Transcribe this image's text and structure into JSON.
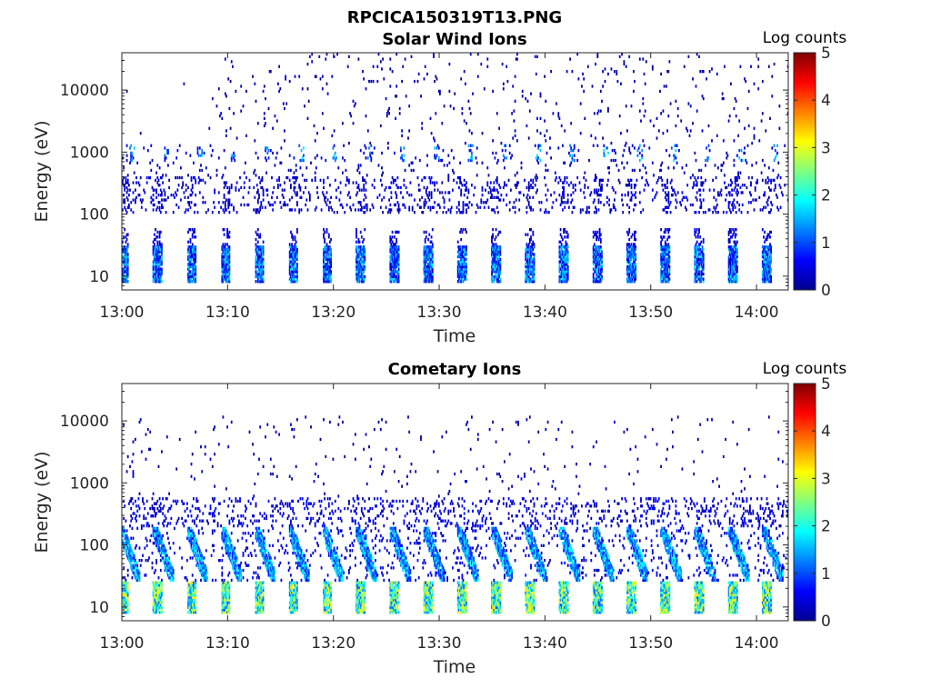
{
  "figure": {
    "title": "RPCICA150319T13.PNG"
  },
  "chart_data": [
    {
      "type": "heatmap",
      "title": "Solar Wind Ions",
      "xlabel": "Time",
      "ylabel": "Energy (eV)",
      "x_ticks": [
        "13:00",
        "13:10",
        "13:20",
        "13:30",
        "13:40",
        "13:50",
        "14:00"
      ],
      "x_range_minutes": [
        0,
        63
      ],
      "y_scale": "log",
      "y_ticks": [
        "10",
        "100",
        "1000",
        "10000"
      ],
      "y_range_eV": [
        6,
        40000
      ],
      "colorbar": {
        "label": "Log counts",
        "ticks": [
          "0",
          "1",
          "2",
          "3",
          "4",
          "5"
        ],
        "range": [
          0,
          5
        ],
        "colormap": "jet"
      },
      "grid": false,
      "features": [
        {
          "energy_eV": [
            8,
            30
          ],
          "log_counts_max": 1.7,
          "description": "periodic low-energy bursts every ~3.2 min"
        },
        {
          "energy_eV": [
            100,
            400
          ],
          "log_counts_max": 0.6,
          "description": "scattered medium-energy counts"
        },
        {
          "energy_eV": [
            700,
            1400
          ],
          "log_counts_max": 1.8,
          "description": "intermittent solar wind peak"
        },
        {
          "energy_eV": [
            1000,
            40000
          ],
          "log_counts_max": 0.3,
          "description": "sparse high-energy background, mostly after 13:10"
        }
      ]
    },
    {
      "type": "heatmap",
      "title": "Cometary Ions",
      "xlabel": "Time",
      "ylabel": "Energy (eV)",
      "x_ticks": [
        "13:00",
        "13:10",
        "13:20",
        "13:30",
        "13:40",
        "13:50",
        "14:00"
      ],
      "x_range_minutes": [
        0,
        63
      ],
      "y_scale": "log",
      "y_ticks": [
        "10",
        "100",
        "1000",
        "10000"
      ],
      "y_range_eV": [
        6,
        40000
      ],
      "colorbar": {
        "label": "Log counts",
        "ticks": [
          "0",
          "1",
          "2",
          "3",
          "4",
          "5"
        ],
        "range": [
          0,
          5
        ],
        "colormap": "jet"
      },
      "grid": false,
      "features": [
        {
          "energy_eV": [
            8,
            25
          ],
          "log_counts_max": 3.2,
          "description": "periodic low-energy cometary ion bursts every ~3.2 min"
        },
        {
          "energy_eV": [
            25,
            200
          ],
          "log_counts_max": 1.9,
          "description": "diagonal dispersed streaks within each burst"
        },
        {
          "energy_eV": [
            200,
            600
          ],
          "log_counts_max": 0.7,
          "description": "scattered medium-energy counts"
        },
        {
          "energy_eV": [
            1000,
            10000
          ],
          "log_counts_max": 0.4,
          "description": "sparse high-energy background"
        }
      ]
    }
  ]
}
